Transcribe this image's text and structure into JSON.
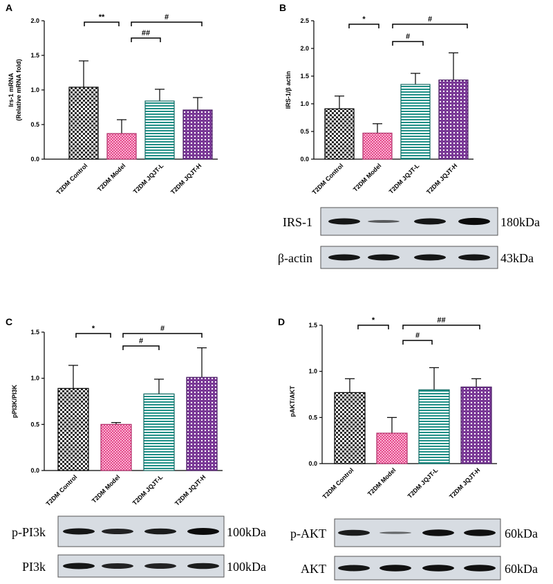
{
  "colors": {
    "control": "#d9d9d9",
    "model": "#e6478a",
    "jqjt_l": "#1f8f86",
    "jqjt_h": "#7a3a96",
    "axis": "#000000",
    "blot_bg": "#d7dce2",
    "band": "#0b0b0b"
  },
  "chart_data": [
    {
      "panel": "A",
      "type": "bar",
      "categories": [
        "T2DM Control",
        "T2DM Model",
        "T2DM JQJT-L",
        "T2DM JQJT-H"
      ],
      "values": [
        1.04,
        0.37,
        0.84,
        0.71
      ],
      "errors": [
        0.38,
        0.2,
        0.17,
        0.18
      ],
      "ylabel": "Irs-1 mRNA\n(Relative mRNA fold)",
      "ylim": [
        0,
        2.0
      ],
      "yticks": [
        "0.0",
        "0.5",
        "1.0",
        "1.5",
        "2.0"
      ],
      "significance": [
        {
          "from": 0,
          "to": 1,
          "label": "**"
        },
        {
          "from": 1,
          "to": 2,
          "label": "##"
        },
        {
          "from": 1,
          "to": 3,
          "label": "#"
        }
      ]
    },
    {
      "panel": "B",
      "type": "bar",
      "categories": [
        "T2DM Control",
        "T2DM Model",
        "T2DM JQJT-L",
        "T2DM JQJT-H"
      ],
      "values": [
        0.91,
        0.47,
        1.35,
        1.43
      ],
      "errors": [
        0.23,
        0.17,
        0.2,
        0.49
      ],
      "ylabel": "IRS-1/β actin",
      "ylim": [
        0,
        2.5
      ],
      "yticks": [
        "0.0",
        "0.5",
        "1.0",
        "1.5",
        "2.0",
        "2.5"
      ],
      "significance": [
        {
          "from": 0,
          "to": 1,
          "label": "*"
        },
        {
          "from": 1,
          "to": 2,
          "label": "#"
        },
        {
          "from": 1,
          "to": 3,
          "label": "#"
        }
      ],
      "blots": [
        {
          "name": "IRS-1",
          "size": "180kDa",
          "bands": [
            1.0,
            0.45,
            1.0,
            1.15
          ]
        },
        {
          "name": "β-actin",
          "size": "43kDa",
          "bands": [
            1.0,
            1.0,
            1.0,
            1.0
          ]
        }
      ]
    },
    {
      "panel": "C",
      "type": "bar",
      "categories": [
        "T2DM Control",
        "T2DM Model",
        "T2DM JQJT-L",
        "T2DM JQJT-H"
      ],
      "values": [
        0.89,
        0.5,
        0.83,
        1.01
      ],
      "errors": [
        0.25,
        0.02,
        0.16,
        0.32
      ],
      "ylabel": "pPI3K/PI3K",
      "ylim": [
        0,
        1.5
      ],
      "yticks": [
        "0.0",
        "0.5",
        "1.0",
        "1.5"
      ],
      "significance": [
        {
          "from": 0,
          "to": 1,
          "label": "*"
        },
        {
          "from": 1,
          "to": 2,
          "label": "#"
        },
        {
          "from": 1,
          "to": 3,
          "label": "#"
        }
      ],
      "blots": [
        {
          "name": "p-PI3k",
          "size": "100kDa",
          "bands": [
            1.0,
            0.9,
            0.95,
            1.1
          ]
        },
        {
          "name": "PI3k",
          "size": "100kDa",
          "bands": [
            1.0,
            0.9,
            0.9,
            0.95
          ]
        }
      ]
    },
    {
      "panel": "D",
      "type": "bar",
      "categories": [
        "T2DM Control",
        "T2DM Model",
        "T2DM JQJT-L",
        "T2DM JQJT-H"
      ],
      "values": [
        0.77,
        0.33,
        0.8,
        0.83
      ],
      "errors": [
        0.15,
        0.17,
        0.24,
        0.09
      ],
      "ylabel": "pAKT/AKT",
      "ylim": [
        0,
        1.5
      ],
      "yticks": [
        "0.0",
        "0.5",
        "1.0",
        "1.5"
      ],
      "significance": [
        {
          "from": 0,
          "to": 1,
          "label": "*"
        },
        {
          "from": 1,
          "to": 2,
          "label": "#"
        },
        {
          "from": 1,
          "to": 3,
          "label": "##"
        }
      ],
      "blots": [
        {
          "name": "p-AKT",
          "size": "60kDa",
          "bands": [
            0.95,
            0.35,
            1.05,
            1.05
          ]
        },
        {
          "name": "AKT",
          "size": "60kDa",
          "bands": [
            1.0,
            1.05,
            1.05,
            1.05
          ]
        }
      ]
    }
  ]
}
